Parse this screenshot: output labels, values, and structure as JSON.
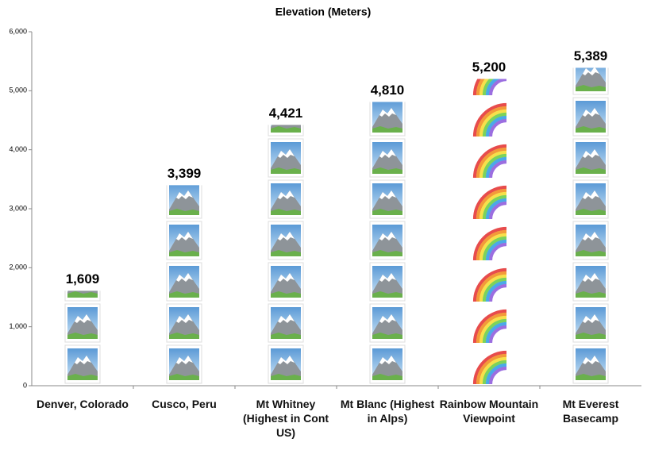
{
  "chart_data": {
    "type": "bar",
    "title": "Elevation (Meters)",
    "categories": [
      "Denver, Colorado",
      "Cusco, Peru",
      "Mt Whitney (Highest in Cont US)",
      "Mt Blanc (Highest in Alps)",
      "Rainbow Mountain Viewpoint",
      "Mt Everest Basecamp"
    ],
    "values": [
      1609,
      3399,
      4421,
      4810,
      5200,
      5389
    ],
    "value_labels": [
      "1,609",
      "3,399",
      "4,421",
      "4,810",
      "5,200",
      "5,389"
    ],
    "markers": [
      "mountain",
      "mountain",
      "mountain",
      "mountain",
      "rainbow",
      "mountain"
    ],
    "ylim": [
      0,
      6000
    ],
    "yticks": [
      0,
      {
        "value": 1000,
        "label": "1,000"
      },
      {
        "value": 2000,
        "label": "2,000"
      },
      {
        "value": 3000,
        "label": "3,000"
      },
      {
        "value": 4000,
        "label": "4,000"
      },
      {
        "value": 5000,
        "label": "5,000"
      },
      {
        "value": 6000,
        "label": "6,000"
      }
    ],
    "grid": false
  }
}
